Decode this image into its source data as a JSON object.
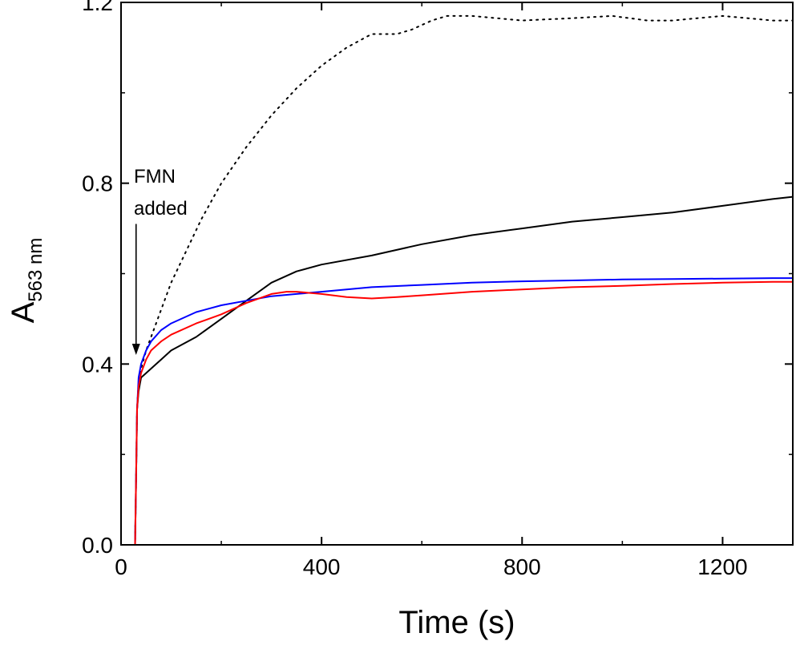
{
  "chart_data": {
    "type": "line",
    "title": "",
    "xlabel": "Time (s)",
    "ylabel": {
      "main": "A",
      "sub": "563 nm"
    },
    "xlim": [
      0,
      1340
    ],
    "ylim": [
      0,
      1.2
    ],
    "xticks": [
      0,
      400,
      800,
      1200
    ],
    "xtick_labels": [
      "0",
      "400",
      "800",
      "1200"
    ],
    "yticks": [
      0.0,
      0.4,
      0.8,
      1.2
    ],
    "ytick_labels": [
      "0.0",
      "0.4",
      "0.8",
      "1.2"
    ],
    "grid": false,
    "legend": "none",
    "annotation": {
      "lines": [
        "FMN",
        "added"
      ],
      "arrow_x": 30,
      "arrow_from_y": 0.71,
      "arrow_to_y": 0.42
    },
    "series": [
      {
        "color": "#000000",
        "dash": "dotted",
        "x": [
          0,
          28,
          30,
          32,
          35,
          40,
          50,
          60,
          80,
          100,
          130,
          160,
          200,
          250,
          300,
          350,
          400,
          450,
          500,
          550,
          580,
          600,
          620,
          650,
          700,
          800,
          900,
          980,
          1050,
          1100,
          1150,
          1200,
          1250,
          1300,
          1340
        ],
        "y": [
          0,
          0,
          0.15,
          0.3,
          0.36,
          0.39,
          0.43,
          0.46,
          0.52,
          0.58,
          0.65,
          0.72,
          0.8,
          0.88,
          0.95,
          1.01,
          1.06,
          1.1,
          1.13,
          1.13,
          1.14,
          1.15,
          1.16,
          1.17,
          1.17,
          1.16,
          1.165,
          1.17,
          1.16,
          1.16,
          1.165,
          1.17,
          1.165,
          1.16,
          1.16
        ]
      },
      {
        "color": "#000000",
        "dash": "solid",
        "x": [
          0,
          28,
          30,
          32,
          35,
          40,
          50,
          60,
          80,
          100,
          150,
          200,
          250,
          300,
          350,
          400,
          500,
          600,
          700,
          800,
          900,
          1000,
          1100,
          1200,
          1300,
          1340
        ],
        "y": [
          0,
          0,
          0.15,
          0.3,
          0.34,
          0.37,
          0.38,
          0.39,
          0.41,
          0.43,
          0.46,
          0.5,
          0.54,
          0.58,
          0.605,
          0.62,
          0.64,
          0.665,
          0.685,
          0.7,
          0.715,
          0.725,
          0.735,
          0.75,
          0.765,
          0.77
        ]
      },
      {
        "color": "#0000ff",
        "dash": "solid",
        "x": [
          0,
          28,
          30,
          32,
          35,
          40,
          50,
          60,
          80,
          100,
          150,
          200,
          250,
          300,
          350,
          400,
          500,
          600,
          700,
          800,
          900,
          1000,
          1100,
          1200,
          1300,
          1340
        ],
        "y": [
          0,
          0,
          0.15,
          0.3,
          0.37,
          0.4,
          0.43,
          0.45,
          0.475,
          0.49,
          0.515,
          0.53,
          0.54,
          0.55,
          0.555,
          0.56,
          0.57,
          0.575,
          0.58,
          0.583,
          0.585,
          0.587,
          0.588,
          0.589,
          0.59,
          0.59
        ]
      },
      {
        "color": "#ff0000",
        "dash": "solid",
        "x": [
          0,
          28,
          30,
          32,
          35,
          40,
          50,
          60,
          80,
          100,
          150,
          200,
          250,
          300,
          330,
          350,
          400,
          450,
          500,
          550,
          600,
          700,
          800,
          900,
          1000,
          1100,
          1200,
          1300,
          1340
        ],
        "y": [
          0,
          0,
          0.15,
          0.3,
          0.35,
          0.38,
          0.41,
          0.43,
          0.45,
          0.465,
          0.49,
          0.51,
          0.535,
          0.555,
          0.56,
          0.56,
          0.555,
          0.548,
          0.545,
          0.548,
          0.552,
          0.56,
          0.565,
          0.57,
          0.573,
          0.577,
          0.58,
          0.582,
          0.582
        ]
      }
    ]
  }
}
